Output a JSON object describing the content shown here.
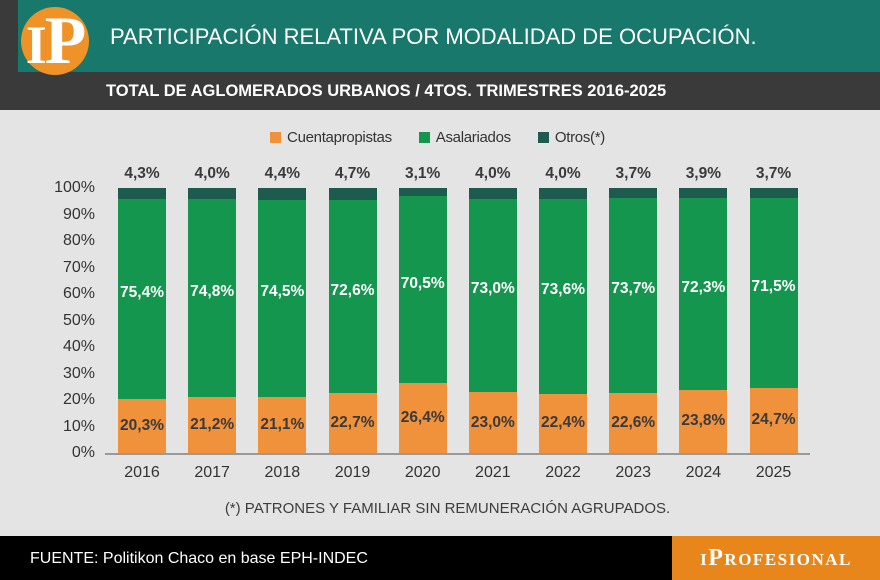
{
  "header": {
    "logo_i": "I",
    "logo_p": "P",
    "title": "PARTICIPACIÓN RELATIVA POR MODALIDAD DE OCUPACIÓN.",
    "subtitle": "TOTAL DE AGLOMERADOS URBANOS / 4TOS. TRIMESTRES 2016-2025"
  },
  "chart_data": {
    "type": "bar",
    "stacked": true,
    "title": "PARTICIPACIÓN RELATIVA POR MODALIDAD DE OCUPACIÓN.",
    "subtitle": "TOTAL DE AGLOMERADOS URBANOS / 4TOS. TRIMESTRES 2016-2025",
    "categories": [
      "2016",
      "2017",
      "2018",
      "2019",
      "2020",
      "2021",
      "2022",
      "2023",
      "2024",
      "2025"
    ],
    "series": [
      {
        "name": "Cuentapropistas",
        "color": "#F0913B",
        "label_color": "#3A3A3A",
        "values": [
          20.3,
          21.2,
          21.1,
          22.7,
          26.4,
          23.0,
          22.4,
          22.6,
          23.8,
          24.7
        ]
      },
      {
        "name": "Asalariados",
        "color": "#15964E",
        "label_color": "#FFFFFF",
        "values": [
          75.4,
          74.8,
          74.5,
          72.6,
          70.5,
          73.0,
          73.6,
          73.7,
          72.3,
          71.5
        ]
      },
      {
        "name": "Otros(*)",
        "color": "#1C5B4E",
        "label_color": "#3A3A3A",
        "values": [
          4.3,
          4.0,
          4.4,
          4.7,
          3.1,
          4.0,
          4.0,
          3.7,
          3.9,
          3.7
        ]
      }
    ],
    "y_ticks": [
      "100%",
      "90%",
      "80%",
      "70%",
      "60%",
      "50%",
      "40%",
      "30%",
      "20%",
      "10%",
      "0%"
    ],
    "ylim": [
      0,
      100
    ],
    "grid": false,
    "legend_position": "top",
    "value_label_format": "decimal comma + %"
  },
  "footnote": "(*) PATRONES Y FAMILIAR SIN REMUNERACIÓN AGRUPADOS.",
  "footer": {
    "source": "FUENTE: Politikon Chaco en base EPH-INDEC",
    "brand": "iProfesional"
  }
}
